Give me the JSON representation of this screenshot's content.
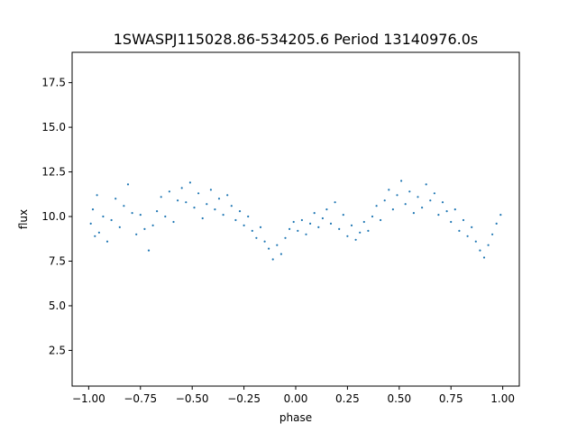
{
  "chart_data": {
    "type": "scatter",
    "title": "1SWASPJ115028.86-534205.6 Period 13140976.0s",
    "xlabel": "phase",
    "ylabel": "flux",
    "xlim": [
      -1.08,
      1.08
    ],
    "ylim": [
      0.5,
      19.2
    ],
    "xticks": [
      -1.0,
      -0.75,
      -0.5,
      -0.25,
      0.0,
      0.25,
      0.5,
      0.75,
      1.0
    ],
    "xtick_labels": [
      "−1.00",
      "−0.75",
      "−0.50",
      "−0.25",
      "0.00",
      "0.25",
      "0.50",
      "0.75",
      "1.00"
    ],
    "yticks": [
      2.5,
      5.0,
      7.5,
      10.0,
      12.5,
      15.0,
      17.5
    ],
    "ytick_labels": [
      "2.5",
      "5.0",
      "7.5",
      "10.0",
      "12.5",
      "15.0",
      "17.5"
    ],
    "grid": false,
    "legend": "none",
    "marker_color": "#1f77b4",
    "series": [
      {
        "values": [
          [
            -0.99,
            9.6
          ],
          [
            -0.98,
            10.4
          ],
          [
            -0.97,
            8.9
          ],
          [
            -0.96,
            11.2
          ],
          [
            -0.95,
            9.1
          ],
          [
            -0.93,
            10.0
          ],
          [
            -0.91,
            8.6
          ],
          [
            -0.89,
            9.8
          ],
          [
            -0.87,
            11.0
          ],
          [
            -0.85,
            9.4
          ],
          [
            -0.83,
            10.6
          ],
          [
            -0.81,
            11.8
          ],
          [
            -0.79,
            10.2
          ],
          [
            -0.77,
            9.0
          ],
          [
            -0.75,
            10.1
          ],
          [
            -0.73,
            9.3
          ],
          [
            -0.71,
            8.1
          ],
          [
            -0.69,
            9.5
          ],
          [
            -0.67,
            10.3
          ],
          [
            -0.65,
            11.1
          ],
          [
            -0.63,
            10.0
          ],
          [
            -0.61,
            11.4
          ],
          [
            -0.59,
            9.7
          ],
          [
            -0.57,
            10.9
          ],
          [
            -0.55,
            11.6
          ],
          [
            -0.53,
            10.8
          ],
          [
            -0.51,
            11.9
          ],
          [
            -0.49,
            10.5
          ],
          [
            -0.47,
            11.3
          ],
          [
            -0.45,
            9.9
          ],
          [
            -0.43,
            10.7
          ],
          [
            -0.41,
            11.5
          ],
          [
            -0.39,
            10.4
          ],
          [
            -0.37,
            11.0
          ],
          [
            -0.35,
            10.1
          ],
          [
            -0.33,
            11.2
          ],
          [
            -0.31,
            10.6
          ],
          [
            -0.29,
            9.8
          ],
          [
            -0.27,
            10.3
          ],
          [
            -0.25,
            9.5
          ],
          [
            -0.23,
            10.0
          ],
          [
            -0.21,
            9.2
          ],
          [
            -0.19,
            8.8
          ],
          [
            -0.17,
            9.4
          ],
          [
            -0.15,
            8.6
          ],
          [
            -0.13,
            8.2
          ],
          [
            -0.11,
            7.6
          ],
          [
            -0.09,
            8.4
          ],
          [
            -0.07,
            7.9
          ],
          [
            -0.05,
            8.8
          ],
          [
            -0.03,
            9.3
          ],
          [
            -0.01,
            9.7
          ],
          [
            0.01,
            9.2
          ],
          [
            0.03,
            9.8
          ],
          [
            0.05,
            9.0
          ],
          [
            0.07,
            9.6
          ],
          [
            0.09,
            10.2
          ],
          [
            0.11,
            9.4
          ],
          [
            0.13,
            9.9
          ],
          [
            0.15,
            10.4
          ],
          [
            0.17,
            9.6
          ],
          [
            0.19,
            10.8
          ],
          [
            0.21,
            9.3
          ],
          [
            0.23,
            10.1
          ],
          [
            0.25,
            8.9
          ],
          [
            0.27,
            9.5
          ],
          [
            0.29,
            8.7
          ],
          [
            0.31,
            9.1
          ],
          [
            0.33,
            9.7
          ],
          [
            0.35,
            9.2
          ],
          [
            0.37,
            10.0
          ],
          [
            0.39,
            10.6
          ],
          [
            0.41,
            9.8
          ],
          [
            0.43,
            10.9
          ],
          [
            0.45,
            11.5
          ],
          [
            0.47,
            10.4
          ],
          [
            0.49,
            11.2
          ],
          [
            0.51,
            12.0
          ],
          [
            0.53,
            10.7
          ],
          [
            0.55,
            11.4
          ],
          [
            0.57,
            10.2
          ],
          [
            0.59,
            11.1
          ],
          [
            0.61,
            10.5
          ],
          [
            0.63,
            11.8
          ],
          [
            0.65,
            10.9
          ],
          [
            0.67,
            11.3
          ],
          [
            0.69,
            10.1
          ],
          [
            0.71,
            10.8
          ],
          [
            0.73,
            10.3
          ],
          [
            0.75,
            9.7
          ],
          [
            0.77,
            10.4
          ],
          [
            0.79,
            9.2
          ],
          [
            0.81,
            9.8
          ],
          [
            0.83,
            8.9
          ],
          [
            0.85,
            9.4
          ],
          [
            0.87,
            8.6
          ],
          [
            0.89,
            8.1
          ],
          [
            0.91,
            7.7
          ],
          [
            0.93,
            8.4
          ],
          [
            0.95,
            9.0
          ],
          [
            0.97,
            9.6
          ],
          [
            0.99,
            10.1
          ]
        ]
      }
    ]
  }
}
